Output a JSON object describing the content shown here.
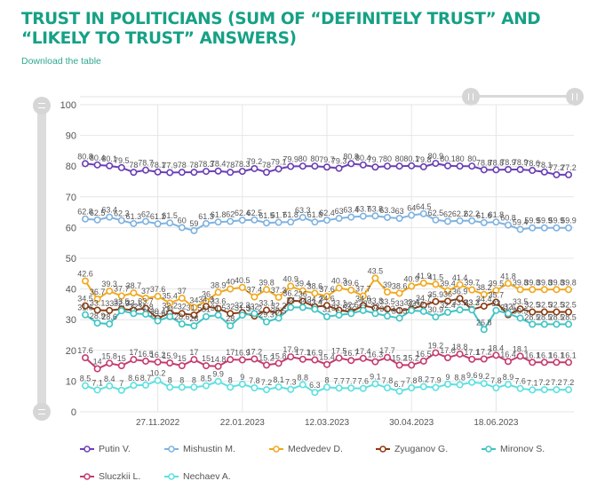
{
  "header": {
    "title": "TRUST IN POLITICIANS (SUM OF “DEFINITELY TRUST” AND “LIKELY TO TRUST” ANSWERS)",
    "download_label": "Download the table"
  },
  "controls": {
    "vertical_slider": {
      "icon": "drag-handle-horizontal-lines",
      "min": 0,
      "max": 100
    },
    "horizontal_slider": {
      "icon": "drag-handle-vertical-lines",
      "range_start_fraction": 0.79,
      "range_end_fraction": 1.0
    }
  },
  "chart_data": {
    "type": "line",
    "title": "TRUST IN POLITICIANS (SUM OF “DEFINITELY TRUST” AND “LIKELY TO TRUST” ANSWERS)",
    "xlabel": "",
    "ylabel": "",
    "ylim": [
      0,
      100
    ],
    "yticks": [
      0,
      10,
      20,
      30,
      40,
      50,
      60,
      70,
      80,
      90,
      100
    ],
    "grid": true,
    "legend_position": "bottom",
    "x_tick_labels": [
      {
        "label": "27.11.2022",
        "index": 6
      },
      {
        "label": "22.01.2023",
        "index": 13
      },
      {
        "label": "12.03.2023",
        "index": 20
      },
      {
        "label": "30.04.2023",
        "index": 27
      },
      {
        "label": "18.06.2023",
        "index": 34
      }
    ],
    "point_count": 41,
    "series": [
      {
        "name": "Putin V.",
        "color": "#6a3fb5",
        "values": [
          80.8,
          80.4,
          80.1,
          79.5,
          78,
          78.7,
          78.1,
          77.9,
          78,
          78,
          78.3,
          78.4,
          78,
          78.3,
          79.2,
          78,
          79.1,
          79.9,
          80,
          80,
          79.7,
          79.3,
          80.8,
          80.4,
          79.7,
          80,
          80,
          80.1,
          79.8,
          80.9,
          80.1,
          80,
          80,
          78.8,
          78.8,
          78.9,
          78.9,
          78.6,
          78.1,
          77.2,
          77.2
        ]
      },
      {
        "name": "Mishustin M.",
        "color": "#7fb3e0",
        "values": [
          62.8,
          62.5,
          63.4,
          62.3,
          61.3,
          62,
          61.2,
          61.5,
          60,
          59,
          61.3,
          61.8,
          62,
          62.4,
          62.5,
          61.5,
          61.7,
          61.8,
          63.3,
          61.8,
          62.4,
          63,
          63.4,
          63.7,
          63.8,
          63.3,
          63,
          64,
          64.5,
          62.5,
          62,
          62.2,
          62.2,
          61.6,
          61.8,
          60.8,
          59.4,
          59.9,
          59.9,
          59.9,
          59.9
        ]
      },
      {
        "name": "Medvedev D.",
        "color": "#f0a81e",
        "values": [
          42.6,
          36.7,
          39.3,
          37.7,
          38.7,
          37,
          37.6,
          35.4,
          37,
          34,
          36,
          38.9,
          40,
          40.5,
          37.4,
          39.8,
          37.3,
          40.9,
          39.4,
          38.6,
          37.6,
          40.3,
          39.6,
          37.7,
          43.5,
          39,
          38.6,
          40.9,
          41.9,
          41.5,
          39.4,
          41.4,
          39.7,
          38.2,
          39.5,
          41.8,
          39.8,
          39.8,
          39.8,
          39.8,
          39.8
        ]
      },
      {
        "name": "Zyuganov G.",
        "color": "#8b3a0f",
        "values": [
          34.5,
          33.1,
          33,
          33.5,
          33.1,
          33.7,
          30.4,
          32.2,
          32,
          31.5,
          34.3,
          33.6,
          32,
          32.3,
          31.2,
          33.1,
          32.2,
          36.2,
          36,
          34.2,
          34.6,
          33.1,
          32.5,
          34.6,
          33.8,
          33.5,
          33,
          33.4,
          34.7,
          35.9,
          36,
          36.9,
          33.3,
          34.4,
          35.7,
          31.6,
          33.5,
          32.5,
          32.5,
          32.5,
          32.5
        ]
      },
      {
        "name": "Mironov S.",
        "color": "#3fc4c4",
        "values": [
          31.6,
          28.9,
          28.6,
          32.9,
          32,
          31.8,
          29.6,
          31,
          28.6,
          28,
          31,
          31.5,
          28,
          31.5,
          32,
          29.3,
          30.5,
          34,
          34,
          33.4,
          31,
          31.5,
          32,
          33,
          32,
          31.2,
          30.5,
          33,
          32.7,
          30.9,
          32.4,
          33.2,
          33.2,
          26.8,
          33,
          32,
          30.5,
          28.5,
          28.5,
          28.5,
          28.5
        ]
      },
      {
        "name": "Sluczkii L.",
        "color": "#c53c6e",
        "values": [
          17.6,
          14,
          15.8,
          15,
          17,
          16.5,
          16.2,
          15.9,
          15,
          17,
          15,
          14.8,
          17,
          16.9,
          17.2,
          15.2,
          15.8,
          17.9,
          17.1,
          16.9,
          15.4,
          17.5,
          16.7,
          17.4,
          16.3,
          17.7,
          15.2,
          15.2,
          16.5,
          19.2,
          17.6,
          18.8,
          17.1,
          17.2,
          18.4,
          16.4,
          18.1,
          16.1,
          16.1,
          16.1,
          16.1
        ]
      },
      {
        "name": "Nechaev A.",
        "color": "#5ee0e0",
        "values": [
          8.5,
          7.1,
          8.4,
          7,
          8.6,
          8.7,
          10.2,
          8,
          8,
          8,
          8.5,
          9.9,
          8,
          9,
          7.8,
          7.2,
          8.1,
          7.3,
          8.8,
          6.3,
          8,
          7.7,
          7.7,
          7.6,
          9.1,
          7.8,
          6.7,
          7.8,
          8.2,
          7.9,
          9,
          8.8,
          9.6,
          9.2,
          7.8,
          8.9,
          7.6,
          7.1,
          7.2,
          7.2,
          7.2
        ]
      }
    ]
  }
}
